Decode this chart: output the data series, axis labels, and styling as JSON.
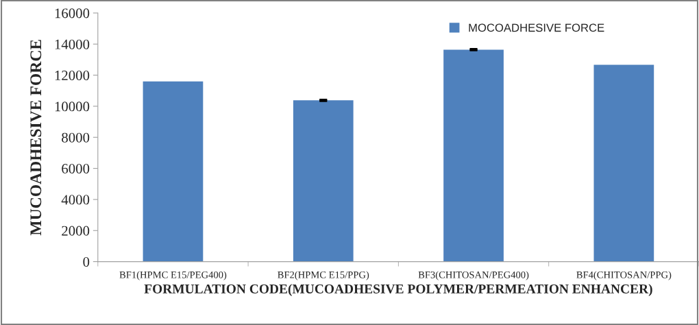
{
  "chart_data": {
    "type": "bar",
    "xlabel": "FORMULATION CODE(MUCOADHESIVE POLYMER/PERMEATION ENHANCER)",
    "ylabel": "MUCOADHESIVE FORCE",
    "categories": [
      "BF1(HPMC E15/PEG400)",
      "BF2(HPMC E15/PPG)",
      "BF3(CHITOSAN/PEG400)",
      "BF4(CHITOSAN/PPG)"
    ],
    "series": [
      {
        "name": "MOCOADHESIVE FORCE",
        "color": "#4f81bd",
        "values": [
          11600,
          10380,
          13640,
          12670
        ],
        "errors": [
          null,
          30,
          30,
          null
        ]
      }
    ],
    "ylim": [
      0,
      16000
    ],
    "yticks": [
      0,
      2000,
      4000,
      6000,
      8000,
      10000,
      12000,
      14000,
      16000
    ],
    "grid": false,
    "legend": "top right"
  }
}
